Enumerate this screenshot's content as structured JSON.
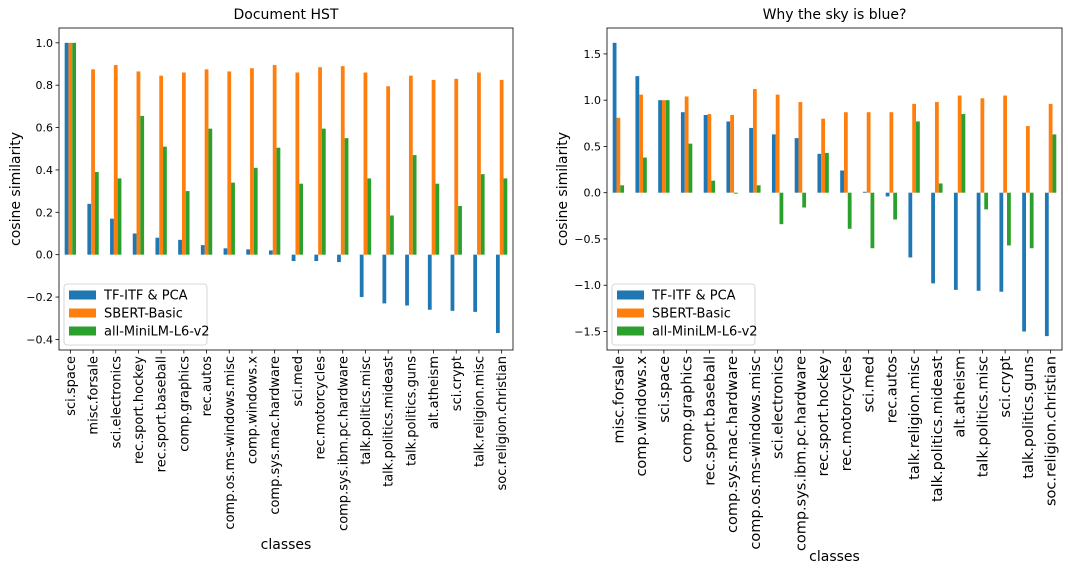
{
  "chart_data": [
    {
      "type": "bar",
      "title": "Document HST",
      "xlabel": "classes",
      "ylabel": "cosine similarity",
      "ylim": [
        -0.45,
        1.07
      ],
      "yticks": [
        -0.4,
        -0.2,
        0.0,
        0.2,
        0.4,
        0.6,
        0.8,
        1.0
      ],
      "ytick_labels": [
        "−0.4",
        "−0.2",
        "0.0",
        "0.2",
        "0.4",
        "0.6",
        "0.8",
        "1.0"
      ],
      "grid": false,
      "legend_position": "lower-left",
      "categories": [
        "sci.space",
        "misc.forsale",
        "sci.electronics",
        "rec.sport.hockey",
        "rec.sport.baseball",
        "comp.graphics",
        "rec.autos",
        "comp.os.ms-windows.misc",
        "comp.windows.x",
        "comp.sys.mac.hardware",
        "sci.med",
        "rec.motorcycles",
        "comp.sys.ibm.pc.hardware",
        "talk.politics.misc",
        "talk.politics.mideast",
        "talk.politics.guns",
        "alt.atheism",
        "sci.crypt",
        "talk.religion.misc",
        "soc.religion.christian"
      ],
      "series": [
        {
          "name": "TF-ITF & PCA",
          "color": "#1f77b4",
          "values": [
            1.0,
            0.24,
            0.17,
            0.1,
            0.08,
            0.07,
            0.045,
            0.03,
            0.025,
            0.02,
            -0.03,
            -0.03,
            -0.035,
            -0.2,
            -0.23,
            -0.24,
            -0.26,
            -0.265,
            -0.27,
            -0.37
          ]
        },
        {
          "name": "SBERT-Basic",
          "color": "#ff7f0e",
          "values": [
            1.0,
            0.875,
            0.895,
            0.865,
            0.845,
            0.86,
            0.875,
            0.865,
            0.88,
            0.895,
            0.86,
            0.885,
            0.89,
            0.86,
            0.795,
            0.845,
            0.825,
            0.83,
            0.86,
            0.825
          ]
        },
        {
          "name": "all-MiniLM-L6-v2",
          "color": "#2ca02c",
          "values": [
            1.0,
            0.39,
            0.36,
            0.655,
            0.51,
            0.3,
            0.595,
            0.34,
            0.41,
            0.505,
            0.335,
            0.595,
            0.55,
            0.36,
            0.185,
            0.47,
            0.335,
            0.23,
            0.38,
            0.36
          ]
        }
      ]
    },
    {
      "type": "bar",
      "title": "Why the sky is blue?",
      "xlabel": "classes",
      "ylabel": "cosine similarity",
      "ylim": [
        -1.7,
        1.78
      ],
      "yticks": [
        -1.5,
        -1.0,
        -0.5,
        0.0,
        0.5,
        1.0,
        1.5
      ],
      "ytick_labels": [
        "−1.5",
        "−1.0",
        "−0.5",
        "0.0",
        "0.5",
        "1.0",
        "1.5"
      ],
      "grid": false,
      "legend_position": "lower-left",
      "categories": [
        "misc.forsale",
        "comp.windows.x",
        "sci.space",
        "comp.graphics",
        "rec.sport.baseball",
        "comp.sys.mac.hardware",
        "comp.os.ms-windows.misc",
        "sci.electronics",
        "comp.sys.ibm.pc.hardware",
        "rec.sport.hockey",
        "rec.motorcycles",
        "sci.med",
        "rec.autos",
        "talk.religion.misc",
        "talk.politics.mideast",
        "alt.atheism",
        "talk.politics.misc",
        "sci.crypt",
        "talk.politics.guns",
        "soc.religion.christian"
      ],
      "series": [
        {
          "name": "TF-ITF & PCA",
          "color": "#1f77b4",
          "values": [
            1.62,
            1.26,
            1.0,
            0.87,
            0.84,
            0.77,
            0.7,
            0.63,
            0.59,
            0.42,
            0.24,
            0.01,
            -0.04,
            -0.7,
            -0.98,
            -1.05,
            -1.06,
            -1.07,
            -1.5,
            -1.55
          ]
        },
        {
          "name": "SBERT-Basic",
          "color": "#ff7f0e",
          "values": [
            0.81,
            1.06,
            1.0,
            1.04,
            0.85,
            0.84,
            1.12,
            1.06,
            0.98,
            0.8,
            0.87,
            0.87,
            0.87,
            0.96,
            0.98,
            1.05,
            1.02,
            1.05,
            0.72,
            0.96
          ]
        },
        {
          "name": "all-MiniLM-L6-v2",
          "color": "#2ca02c",
          "values": [
            0.08,
            0.38,
            1.0,
            0.53,
            0.13,
            -0.01,
            0.08,
            -0.34,
            -0.16,
            0.43,
            -0.39,
            -0.6,
            -0.29,
            0.77,
            0.1,
            0.85,
            -0.18,
            -0.57,
            -0.6,
            0.63
          ]
        }
      ]
    }
  ]
}
